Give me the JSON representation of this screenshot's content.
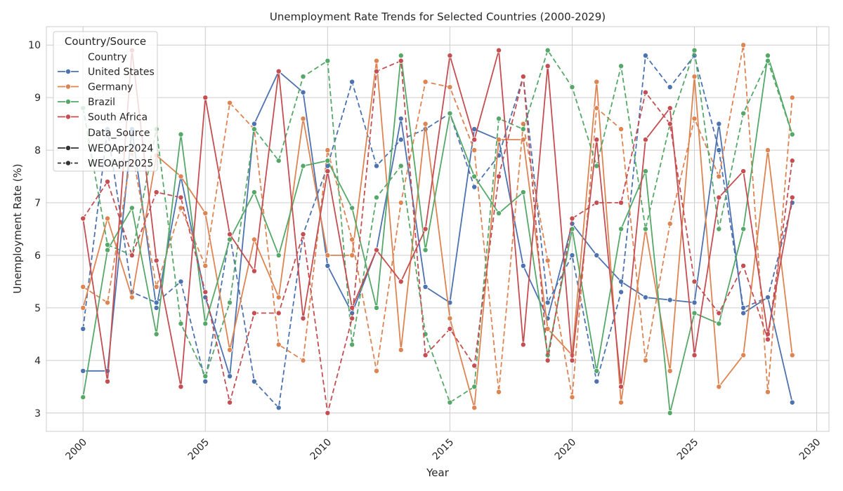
{
  "chart_data": {
    "type": "line",
    "title": "Unemployment Rate Trends for Selected Countries (2000-2029)",
    "xlabel": "Year",
    "ylabel": "Unemployment Rate (%)",
    "xlim": [
      1998.5,
      2030.5
    ],
    "ylim": [
      2.65,
      10.35
    ],
    "xticks": [
      2000,
      2005,
      2010,
      2015,
      2020,
      2025,
      2030
    ],
    "yticks": [
      3,
      4,
      5,
      6,
      7,
      8,
      9,
      10
    ],
    "grid": true,
    "legend": {
      "placement": "top-left",
      "title": "Country/Source",
      "country_header": "Country",
      "source_header": "Data_Source",
      "styles": [
        {
          "label": "WEOApr2024",
          "dash": "solid"
        },
        {
          "label": "WEOApr2025",
          "dash": "dashed"
        }
      ]
    },
    "x": [
      2000,
      2001,
      2002,
      2003,
      2004,
      2005,
      2006,
      2007,
      2008,
      2009,
      2010,
      2011,
      2012,
      2013,
      2014,
      2015,
      2016,
      2017,
      2018,
      2019,
      2020,
      2021,
      2022,
      2023,
      2024,
      2025,
      2026,
      2027,
      2028,
      2029
    ],
    "series": [
      {
        "name": "United States",
        "country": "United States",
        "source": "WEOApr2024",
        "color": "#4c72b0",
        "values": [
          3.8,
          3.8,
          8.4,
          5.0,
          7.5,
          5.2,
          3.7,
          8.5,
          9.5,
          9.1,
          5.8,
          4.9,
          6.1,
          8.6,
          5.4,
          5.1,
          8.4,
          8.2,
          5.8,
          4.8,
          6.6,
          6.0,
          5.5,
          5.2,
          5.15,
          5.1,
          8.5,
          4.9,
          5.2,
          3.2
        ]
      },
      {
        "name": "United States",
        "country": "United States",
        "source": "WEOApr2025",
        "color": "#4c72b0",
        "values": [
          4.6,
          8.4,
          5.3,
          5.1,
          5.5,
          3.6,
          6.4,
          3.6,
          3.1,
          6.4,
          7.7,
          9.3,
          7.7,
          8.2,
          8.4,
          8.7,
          7.3,
          7.9,
          9.4,
          5.1,
          6.0,
          3.6,
          5.3,
          9.8,
          9.2,
          9.8,
          8.0,
          5.0,
          5.2,
          7.0
        ]
      },
      {
        "name": "Germany",
        "country": "Germany",
        "source": "WEOApr2024",
        "color": "#dd8452",
        "values": [
          5.0,
          6.7,
          5.2,
          7.9,
          7.5,
          6.8,
          4.2,
          6.3,
          5.2,
          8.6,
          6.0,
          6.0,
          9.7,
          4.2,
          8.5,
          4.8,
          3.1,
          8.2,
          8.2,
          4.6,
          4.1,
          9.3,
          3.2,
          6.5,
          3.8,
          9.4,
          3.5,
          4.1,
          8.0,
          4.1
        ]
      },
      {
        "name": "Germany",
        "country": "Germany",
        "source": "WEOApr2025",
        "color": "#dd8452",
        "values": [
          5.4,
          5.1,
          8.0,
          5.4,
          6.9,
          5.8,
          8.9,
          8.4,
          4.3,
          4.0,
          8.0,
          6.3,
          3.8,
          7.0,
          9.3,
          9.2,
          8.0,
          3.4,
          8.5,
          5.9,
          3.3,
          8.8,
          8.4,
          4.0,
          6.6,
          8.6,
          7.5,
          10.0,
          3.4,
          9.0
        ]
      },
      {
        "name": "Brazil",
        "country": "Brazil",
        "source": "WEOApr2024",
        "color": "#55a868",
        "values": [
          3.3,
          6.1,
          6.9,
          4.5,
          8.3,
          4.7,
          6.3,
          7.2,
          6.0,
          7.7,
          7.8,
          6.9,
          5.0,
          9.8,
          6.1,
          8.7,
          7.5,
          6.8,
          7.2,
          4.1,
          6.5,
          3.8,
          6.5,
          7.6,
          3.0,
          4.9,
          4.7,
          6.5,
          9.8,
          8.3
        ]
      },
      {
        "name": "Brazil",
        "country": "Brazil",
        "source": "WEOApr2025",
        "color": "#55a868",
        "values": [
          8.8,
          6.2,
          6.0,
          8.4,
          4.7,
          3.7,
          5.1,
          8.4,
          7.8,
          9.4,
          9.7,
          4.3,
          7.1,
          7.7,
          4.5,
          3.2,
          3.5,
          8.6,
          8.4,
          9.9,
          9.2,
          7.7,
          9.6,
          6.5,
          8.5,
          9.9,
          6.5,
          8.7,
          9.7,
          8.3
        ]
      },
      {
        "name": "South Africa",
        "country": "South Africa",
        "source": "WEOApr2024",
        "color": "#c44e52",
        "values": [
          6.7,
          3.6,
          9.9,
          5.9,
          3.5,
          9.0,
          6.4,
          5.7,
          9.5,
          4.8,
          7.6,
          5.0,
          6.1,
          5.5,
          6.5,
          9.8,
          8.2,
          9.9,
          4.3,
          9.6,
          4.0,
          8.2,
          3.5,
          8.2,
          8.8,
          4.1,
          7.1,
          7.6,
          4.5,
          7.1
        ]
      },
      {
        "name": "South Africa",
        "country": "South Africa",
        "source": "WEOApr2025",
        "color": "#c44e52",
        "values": [
          6.7,
          7.4,
          6.0,
          7.2,
          7.1,
          5.3,
          3.2,
          4.9,
          4.9,
          6.4,
          3.0,
          4.8,
          9.5,
          9.7,
          4.1,
          4.6,
          3.9,
          7.5,
          9.4,
          4.0,
          6.7,
          7.0,
          7.0,
          9.1,
          8.5,
          5.5,
          4.9,
          5.8,
          4.4,
          7.8
        ]
      }
    ]
  }
}
